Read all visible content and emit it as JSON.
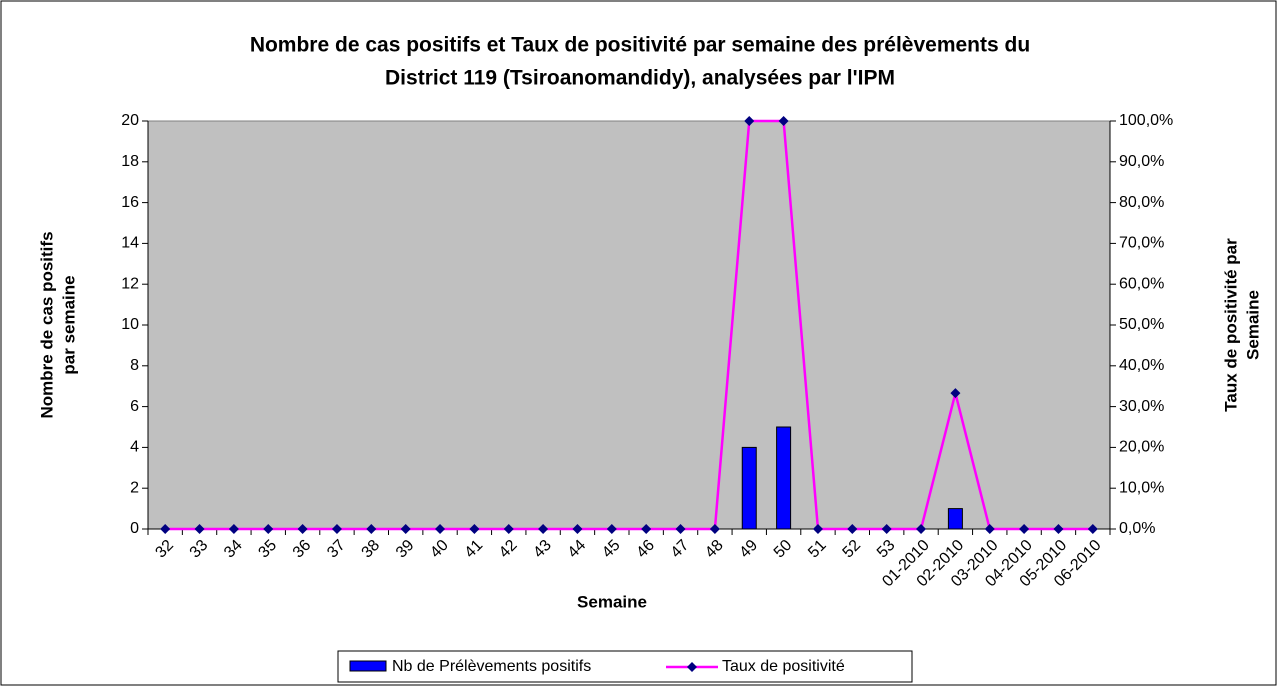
{
  "chart_data": {
    "type": "bar_line",
    "title": [
      "Nombre de cas positifs et Taux de positivité par semaine des prélèvements du",
      "District 119 (Tsiroanomandidy), analysées par l'IPM"
    ],
    "xlabel": "Semaine",
    "ylabel": [
      "Nombre de cas positifs",
      "par semaine"
    ],
    "y2label": [
      "Taux de positivité par",
      "Semaine"
    ],
    "categories": [
      "32",
      "33",
      "34",
      "35",
      "36",
      "37",
      "38",
      "39",
      "40",
      "41",
      "42",
      "43",
      "44",
      "45",
      "46",
      "47",
      "48",
      "49",
      "50",
      "51",
      "52",
      "53",
      "01-2010",
      "02-2010",
      "03-2010",
      "04-2010",
      "05-2010",
      "06-2010"
    ],
    "series": [
      {
        "name": "Nb de Prélèvements positifs",
        "type": "bar",
        "color": "#0000ff",
        "values": [
          0,
          0,
          0,
          0,
          0,
          0,
          0,
          0,
          0,
          0,
          0,
          0,
          0,
          0,
          0,
          0,
          0,
          4,
          5,
          0,
          0,
          0,
          0,
          1,
          0,
          0,
          0,
          0
        ]
      },
      {
        "name": "Taux de positivité",
        "type": "line",
        "axis": "y2",
        "color": "#ff00ff",
        "marker_color": "#000080",
        "values": [
          0,
          0,
          0,
          0,
          0,
          0,
          0,
          0,
          0,
          0,
          0,
          0,
          0,
          0,
          0,
          0,
          0,
          100,
          100,
          0,
          0,
          0,
          0,
          33.3,
          0,
          0,
          0,
          0
        ]
      }
    ],
    "ylim": [
      0,
      20
    ],
    "yticks": [
      0,
      2,
      4,
      6,
      8,
      10,
      12,
      14,
      16,
      18,
      20
    ],
    "y2lim": [
      0,
      100
    ],
    "y2ticks": [
      {
        "value": 0,
        "label": "0,0%"
      },
      {
        "value": 10,
        "label": "10,0%"
      },
      {
        "value": 20,
        "label": "20,0%"
      },
      {
        "value": 30,
        "label": "30,0%"
      },
      {
        "value": 40,
        "label": "40,0%"
      },
      {
        "value": 50,
        "label": "50,0%"
      },
      {
        "value": 60,
        "label": "60,0%"
      },
      {
        "value": 70,
        "label": "70,0%"
      },
      {
        "value": 80,
        "label": "80,0%"
      },
      {
        "value": 90,
        "label": "90,0%"
      },
      {
        "value": 100,
        "label": "100,0%"
      }
    ],
    "plot_background": "#c0c0c0",
    "legend": "bottom"
  }
}
